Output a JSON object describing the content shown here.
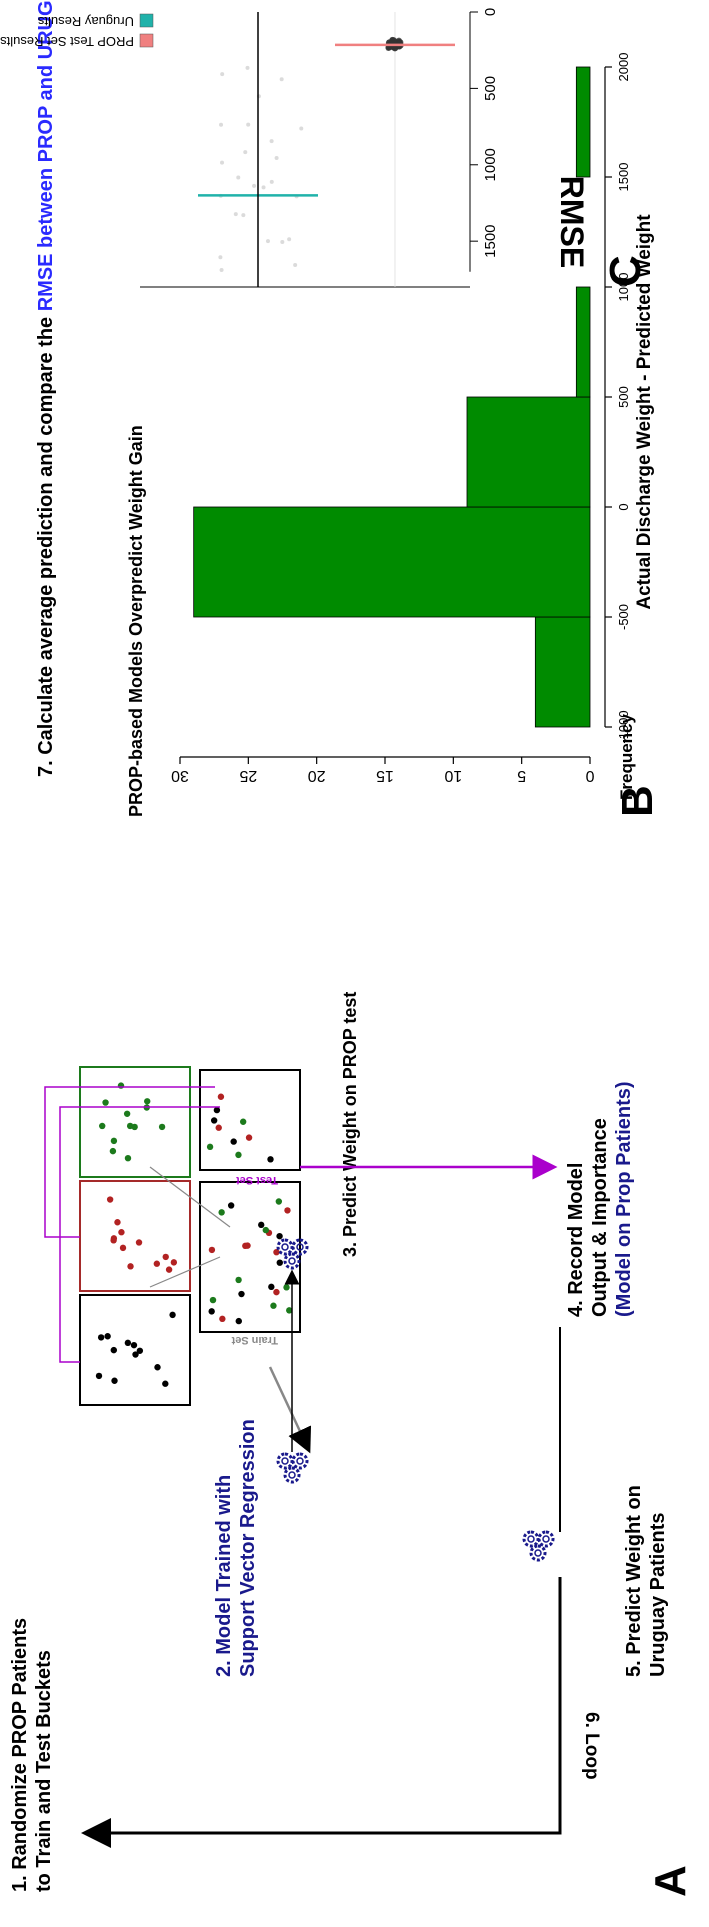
{
  "panel_a": {
    "letter": "A",
    "step1": [
      "1. Randomize PROP Patients",
      "to Train and Test Buckets"
    ],
    "step2": [
      "2. Model Trained with",
      "Support Vector Regression"
    ],
    "step3": "3. Predict Weight on PROP test",
    "step4": [
      "4. Record Model",
      "Output & Importance"
    ],
    "step4_note": "(Model on Prop Patients)",
    "step5": [
      "5. Predict Weight on",
      "Uruguay Patients"
    ],
    "step6": "6. Loop",
    "train_set": "Train Set",
    "test_set": "Test Set",
    "step7_prefix": "7. Calculate average prediction and compare the ",
    "step7_highlight": "RMSE between PROP and URUGUAY Patients",
    "colors": {
      "purple": "#aa00cc",
      "navy": "#1a1a8c",
      "blue_text": "#2a2aff",
      "green": "#1c7a1c",
      "red": "#b22222",
      "black": "#000000"
    }
  },
  "panel_b": {
    "letter": "B",
    "chart_data": {
      "type": "bar",
      "title": "PROP-based Models Overpredict Weight Gain",
      "xlabel": "Actual Discharge Weight - Predicted Weight",
      "ylabel": "Frequency",
      "bins": [
        [
          -1000,
          -500
        ],
        [
          -500,
          0
        ],
        [
          0,
          500
        ],
        [
          500,
          1000
        ],
        [
          1000,
          1500
        ],
        [
          1500,
          2000
        ]
      ],
      "values": [
        4,
        29,
        9,
        1,
        0,
        1
      ],
      "xticks": [
        "-1000",
        "-500",
        "0",
        "500",
        "1000",
        "1500",
        "2000"
      ],
      "yticks": [
        "0",
        "5",
        "10",
        "15",
        "20",
        "25",
        "30"
      ],
      "ylim": [
        0,
        30
      ],
      "bar_color": "#008b00"
    }
  },
  "panel_c": {
    "letter": "C",
    "chart_data": {
      "type": "scatter",
      "ylabel": "RMSE",
      "categories": [
        "PROP Test Set Results",
        "Uruguay Results"
      ],
      "tick_labels": [
        [
          "PROP Test",
          "Set Results"
        ],
        [
          "Uruguay Results"
        ]
      ],
      "yticks": [
        "0",
        "500",
        "1000",
        "1500"
      ],
      "ylim": [
        0,
        1800
      ],
      "series": [
        {
          "name": "PROP Test Set Results",
          "color": "#f08080",
          "center": 215,
          "spread": [
            180,
            240
          ]
        },
        {
          "name": "Uruguay Results",
          "color": "#20b2aa",
          "center": 1200,
          "spread": [
            350,
            1700
          ]
        }
      ],
      "legend": [
        "PROP Test Set Results",
        "Uruguay Results"
      ],
      "legend_position": "right"
    }
  }
}
